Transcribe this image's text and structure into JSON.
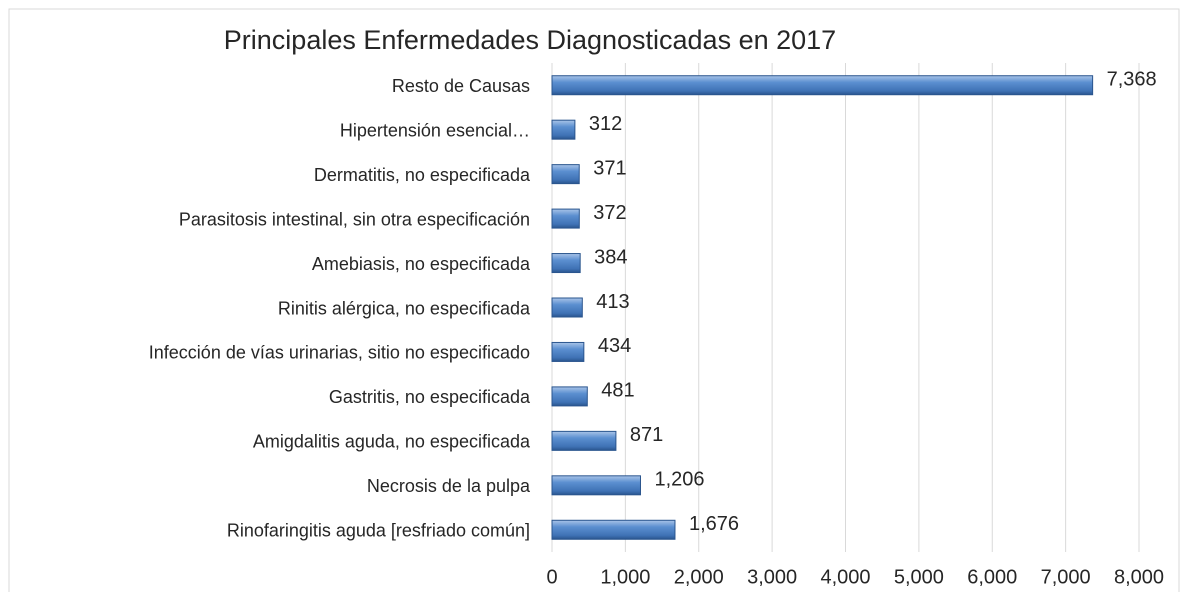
{
  "chart_data": {
    "type": "bar",
    "orientation": "horizontal",
    "title": "Principales Enfermedades Diagnosticadas en 2017",
    "categories": [
      "Resto de Causas",
      "Hipertensión esencial…",
      "Dermatitis, no especificada",
      "Parasitosis intestinal, sin otra especificación",
      "Amebiasis, no especificada",
      "Rinitis alérgica, no especificada",
      "Infección de vías urinarias, sitio no especificado",
      "Gastritis, no especificada",
      "Amigdalitis aguda, no especificada",
      "Necrosis de la pulpa",
      "Rinofaringitis aguda [resfriado común]"
    ],
    "values": [
      7368,
      312,
      371,
      372,
      384,
      413,
      434,
      481,
      871,
      1206,
      1676
    ],
    "value_labels": [
      "7,368",
      "312",
      "371",
      "372",
      "384",
      "413",
      "434",
      "481",
      "871",
      "1,206",
      "1,676"
    ],
    "color": "#4f81bd",
    "xlim": [
      0,
      8000
    ],
    "xticks": [
      0,
      {
        "value": 1000,
        "label": "1,000"
      },
      {
        "value": 2000,
        "label": "2,000"
      },
      {
        "value": 3000,
        "label": "3,000"
      },
      {
        "value": 4000,
        "label": "4,000"
      },
      {
        "value": 5000,
        "label": "5,000"
      },
      {
        "value": 6000,
        "label": "6,000"
      },
      {
        "value": 7000,
        "label": "7,000"
      },
      {
        "value": 8000,
        "label": "8,000"
      }
    ],
    "grid": true
  }
}
